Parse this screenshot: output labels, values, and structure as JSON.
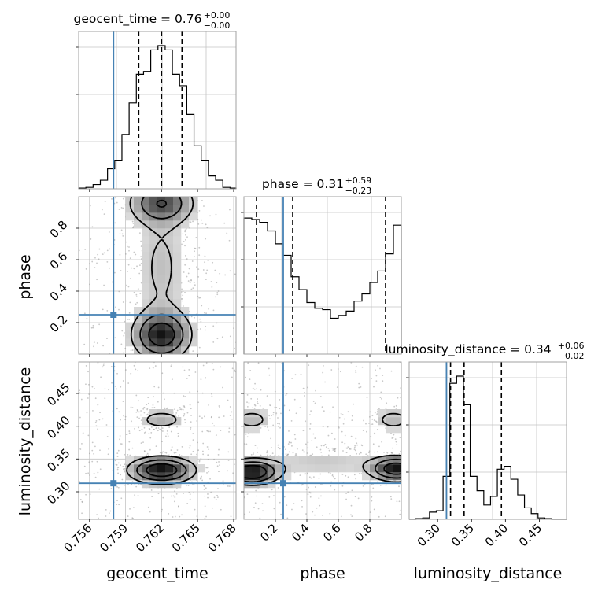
{
  "chart_data": {
    "type": "corner",
    "parameters": [
      "geocent_time",
      "phase",
      "luminosity_distance"
    ],
    "truths": {
      "geocent_time": 0.758,
      "phase": 0.25,
      "luminosity_distance": 0.313
    },
    "colors": {
      "truth": "#4682b4",
      "hist": "#000000",
      "density": "#000000",
      "scatter": "#9a9a9a"
    },
    "grid": true,
    "diagonal": [
      {
        "name": "geocent_time",
        "title": "geocent_time = 0.76",
        "title_sup": "+0.00",
        "title_sub": "−0.00",
        "xlim": [
          0.7551,
          0.7682
        ],
        "quantiles": [
          0.7601,
          0.762,
          0.7637
        ],
        "bins_x": [
          0.7551,
          0.7557,
          0.7563,
          0.7569,
          0.7575,
          0.7581,
          0.7587,
          0.7593,
          0.7599,
          0.7605,
          0.7611,
          0.7617,
          0.7623,
          0.7629,
          0.7635,
          0.7641,
          0.7647,
          0.7653,
          0.7659,
          0.7665,
          0.7671,
          0.7677,
          0.7682
        ],
        "heights": [
          0.005,
          0.01,
          0.03,
          0.06,
          0.14,
          0.2,
          0.38,
          0.6,
          0.8,
          0.82,
          0.97,
          1.0,
          0.97,
          0.8,
          0.72,
          0.52,
          0.3,
          0.2,
          0.09,
          0.06,
          0.01,
          0.005
        ],
        "xticks": [],
        "xtick_labels": []
      },
      {
        "name": "phase",
        "title": "phase = 0.31",
        "title_sup": "+0.59",
        "title_sub": "−0.23",
        "xlim": [
          0.0,
          1.0
        ],
        "quantiles": [
          0.08,
          0.31,
          0.9
        ],
        "bins_x": [
          0.0,
          0.05,
          0.1,
          0.15,
          0.2,
          0.25,
          0.3,
          0.35,
          0.4,
          0.45,
          0.5,
          0.55,
          0.6,
          0.65,
          0.7,
          0.75,
          0.8,
          0.85,
          0.9,
          0.95,
          1.0
        ],
        "heights": [
          0.95,
          0.94,
          0.92,
          0.86,
          0.77,
          0.69,
          0.54,
          0.45,
          0.36,
          0.32,
          0.31,
          0.25,
          0.27,
          0.3,
          0.37,
          0.42,
          0.5,
          0.58,
          0.7,
          0.9
        ],
        "xticks": [],
        "xtick_labels": []
      },
      {
        "name": "luminosity_distance",
        "title": "luminosity_distance = 0.34",
        "title_sup": "+0.06",
        "title_sub": "−0.02",
        "xlim": [
          0.258,
          0.49
        ],
        "quantiles": [
          0.319,
          0.339,
          0.394
        ],
        "bins_x": [
          0.258,
          0.268,
          0.278,
          0.288,
          0.298,
          0.308,
          0.318,
          0.328,
          0.338,
          0.348,
          0.358,
          0.368,
          0.378,
          0.388,
          0.398,
          0.408,
          0.418,
          0.428,
          0.438,
          0.448,
          0.458,
          0.468,
          0.478,
          0.49
        ],
        "heights": [
          0.0,
          0.005,
          0.01,
          0.05,
          0.06,
          0.3,
          0.95,
          1.0,
          0.8,
          0.3,
          0.2,
          0.1,
          0.16,
          0.35,
          0.37,
          0.28,
          0.17,
          0.08,
          0.04,
          0.01,
          0.005,
          0.0,
          0.0
        ],
        "xticks": [
          0.3,
          0.35,
          0.4,
          0.45
        ],
        "xtick_labels": [
          "0.30",
          "0.35",
          "0.40",
          "0.45"
        ]
      }
    ],
    "panels_2d": [
      {
        "x": "geocent_time",
        "y": "phase",
        "xlim": [
          0.7551,
          0.7682
        ],
        "ylim": [
          0.0,
          1.0
        ],
        "yticks": [
          0.2,
          0.4,
          0.6,
          0.8
        ],
        "ytick_labels": [
          "0.2",
          "0.4",
          "0.6",
          "0.8"
        ],
        "blobs": [
          {
            "cx": 0.762,
            "cy": 0.12,
            "sx": 0.0014,
            "sy": 0.09,
            "w": 1.0
          },
          {
            "cx": 0.762,
            "cy": 0.96,
            "sx": 0.0016,
            "sy": 0.08,
            "w": 0.75
          },
          {
            "cx": 0.762,
            "cy": 0.55,
            "sx": 0.0015,
            "sy": 0.28,
            "w": 0.25
          }
        ]
      },
      {
        "x": "geocent_time",
        "y": "luminosity_distance",
        "xlim": [
          0.7551,
          0.7682
        ],
        "ylim": [
          0.258,
          0.498
        ],
        "xticks": [
          0.756,
          0.759,
          0.762,
          0.765,
          0.768
        ],
        "xtick_labels": [
          "0.756",
          "0.759",
          "0.762",
          "0.765",
          "0.768"
        ],
        "yticks": [
          0.3,
          0.35,
          0.4,
          0.45
        ],
        "ytick_labels": [
          "0.30",
          "0.35",
          "0.40",
          "0.45"
        ],
        "blobs": [
          {
            "cx": 0.762,
            "cy": 0.333,
            "sx": 0.0016,
            "sy": 0.012,
            "w": 1.0
          },
          {
            "cx": 0.762,
            "cy": 0.41,
            "sx": 0.0013,
            "sy": 0.01,
            "w": 0.3
          }
        ]
      },
      {
        "x": "phase",
        "y": "luminosity_distance",
        "xlim": [
          0.0,
          1.0
        ],
        "ylim": [
          0.258,
          0.498
        ],
        "xticks": [
          0.2,
          0.4,
          0.6,
          0.8
        ],
        "xtick_labels": [
          "0.2",
          "0.4",
          "0.6",
          "0.8"
        ],
        "blobs": [
          {
            "cx": 0.05,
            "cy": 0.33,
            "sx": 0.1,
            "sy": 0.011,
            "w": 1.0
          },
          {
            "cx": 0.97,
            "cy": 0.335,
            "sx": 0.1,
            "sy": 0.011,
            "w": 0.9
          },
          {
            "cx": 0.5,
            "cy": 0.345,
            "sx": 0.25,
            "sy": 0.015,
            "w": 0.18
          },
          {
            "cx": 0.05,
            "cy": 0.41,
            "sx": 0.09,
            "sy": 0.012,
            "w": 0.25
          },
          {
            "cx": 0.95,
            "cy": 0.41,
            "sx": 0.09,
            "sy": 0.012,
            "w": 0.25
          }
        ]
      }
    ]
  }
}
